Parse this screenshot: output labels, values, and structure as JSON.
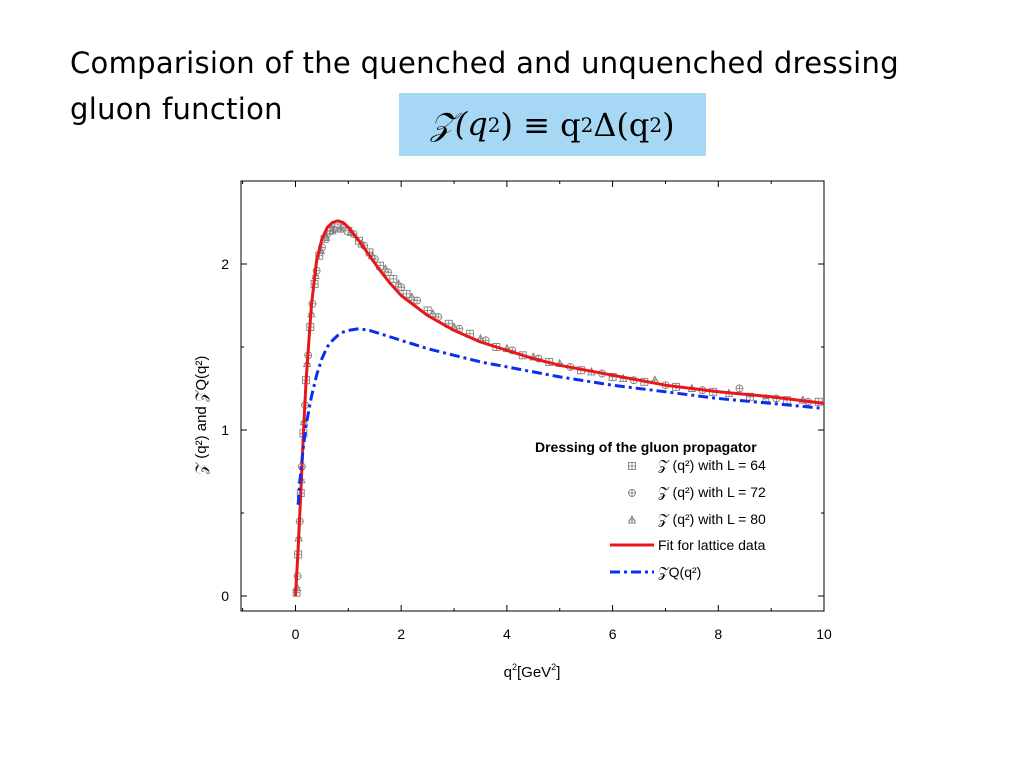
{
  "slide": {
    "title": "Comparision of the quenched and  unquenched dressing gluon function",
    "formula_lhs": "𝒵(q",
    "formula_mid": ") ≡ q",
    "formula_rhs": "Δ(q",
    "formula_close": ")",
    "formula_exp": "2"
  },
  "chart_data": {
    "type": "scatter",
    "xlabel": "q",
    "xlabel_sup": "2",
    "xlabel_rest": "[GeV",
    "xlabel_end": "]",
    "ylabel": "𝒵 (q²) and 𝒵Q(q²)",
    "xlim": [
      -1,
      10
    ],
    "ylim": [
      -0.1,
      2.5
    ],
    "xticks": [
      0,
      2,
      4,
      6,
      8,
      10
    ],
    "yticks": [
      0,
      1,
      2
    ],
    "legend_title": "Dressing of the gluon propagator",
    "legend_position": "lower-right",
    "series": [
      {
        "name": "𝒵 (q²) with L = 64",
        "kind": "markers",
        "marker": "square-plus",
        "color": "#808080",
        "x": [
          0.02,
          0.05,
          0.1,
          0.15,
          0.2,
          0.28,
          0.36,
          0.45,
          0.55,
          0.65,
          0.8,
          1.0,
          1.2,
          1.4,
          1.6,
          1.85,
          2.1,
          2.5,
          2.9,
          3.3,
          3.8,
          4.3,
          4.8,
          5.4,
          6.0,
          6.6,
          7.2,
          7.9,
          8.6,
          9.3,
          9.9
        ],
        "y": [
          0.02,
          0.25,
          0.62,
          0.98,
          1.3,
          1.62,
          1.88,
          2.05,
          2.15,
          2.2,
          2.22,
          2.2,
          2.14,
          2.07,
          1.99,
          1.91,
          1.82,
          1.72,
          1.64,
          1.58,
          1.5,
          1.45,
          1.41,
          1.36,
          1.32,
          1.29,
          1.26,
          1.23,
          1.2,
          1.18,
          1.17
        ]
      },
      {
        "name": "𝒵 (q²) with L = 72",
        "kind": "markers",
        "marker": "circle-plus",
        "color": "#808080",
        "x": [
          0.04,
          0.08,
          0.12,
          0.18,
          0.24,
          0.32,
          0.4,
          0.5,
          0.6,
          0.72,
          0.9,
          1.1,
          1.3,
          1.5,
          1.75,
          2.0,
          2.3,
          2.7,
          3.1,
          3.6,
          4.1,
          4.6,
          5.2,
          5.8,
          6.4,
          7.0,
          7.7,
          8.4,
          9.1,
          9.7
        ],
        "y": [
          0.12,
          0.45,
          0.78,
          1.15,
          1.45,
          1.76,
          1.96,
          2.1,
          2.18,
          2.21,
          2.22,
          2.18,
          2.11,
          2.03,
          1.95,
          1.86,
          1.78,
          1.68,
          1.61,
          1.54,
          1.48,
          1.43,
          1.38,
          1.34,
          1.3,
          1.27,
          1.24,
          1.25,
          1.19,
          1.17
        ]
      },
      {
        "name": "𝒵 (q²) with L = 80",
        "kind": "markers",
        "marker": "triangle-plus",
        "color": "#808080",
        "x": [
          0.03,
          0.06,
          0.11,
          0.16,
          0.22,
          0.3,
          0.38,
          0.48,
          0.58,
          0.7,
          0.85,
          1.05,
          1.25,
          1.45,
          1.7,
          1.95,
          2.2,
          2.6,
          3.0,
          3.5,
          4.0,
          4.5,
          5.0,
          5.6,
          6.2,
          6.8,
          7.5,
          8.2,
          8.9,
          9.6
        ],
        "y": [
          0.05,
          0.35,
          0.7,
          1.05,
          1.4,
          1.7,
          1.93,
          2.08,
          2.16,
          2.2,
          2.21,
          2.19,
          2.12,
          2.05,
          1.97,
          1.88,
          1.8,
          1.7,
          1.62,
          1.55,
          1.49,
          1.44,
          1.4,
          1.35,
          1.31,
          1.3,
          1.25,
          1.22,
          1.19,
          1.18
        ]
      },
      {
        "name": "Fit for lattice data",
        "kind": "line",
        "style": "solid",
        "color": "#e8171b",
        "x": [
          0,
          0.05,
          0.1,
          0.15,
          0.2,
          0.3,
          0.4,
          0.5,
          0.6,
          0.7,
          0.8,
          0.9,
          1.0,
          1.2,
          1.4,
          1.6,
          1.8,
          2.0,
          2.5,
          3.0,
          3.5,
          4.0,
          4.5,
          5.0,
          6.0,
          7.0,
          8.0,
          9.0,
          10.0
        ],
        "y": [
          0.0,
          0.28,
          0.62,
          0.98,
          1.3,
          1.75,
          2.02,
          2.15,
          2.22,
          2.25,
          2.26,
          2.25,
          2.22,
          2.14,
          2.05,
          1.96,
          1.88,
          1.81,
          1.69,
          1.6,
          1.53,
          1.48,
          1.43,
          1.39,
          1.33,
          1.27,
          1.23,
          1.2,
          1.16
        ]
      },
      {
        "name": "𝒵Q(q²)",
        "kind": "line",
        "style": "dashdot",
        "color": "#0a2ff0",
        "x": [
          0.05,
          0.1,
          0.15,
          0.2,
          0.3,
          0.4,
          0.5,
          0.6,
          0.7,
          0.8,
          0.9,
          1.0,
          1.2,
          1.4,
          1.6,
          1.8,
          2.0,
          2.5,
          3.0,
          3.5,
          4.0,
          4.5,
          5.0,
          6.0,
          7.0,
          8.0,
          9.0,
          10.0
        ],
        "y": [
          0.55,
          0.75,
          0.9,
          1.03,
          1.2,
          1.33,
          1.43,
          1.5,
          1.54,
          1.57,
          1.59,
          1.6,
          1.61,
          1.6,
          1.58,
          1.56,
          1.54,
          1.49,
          1.45,
          1.41,
          1.38,
          1.35,
          1.32,
          1.27,
          1.23,
          1.19,
          1.16,
          1.13
        ]
      }
    ]
  }
}
